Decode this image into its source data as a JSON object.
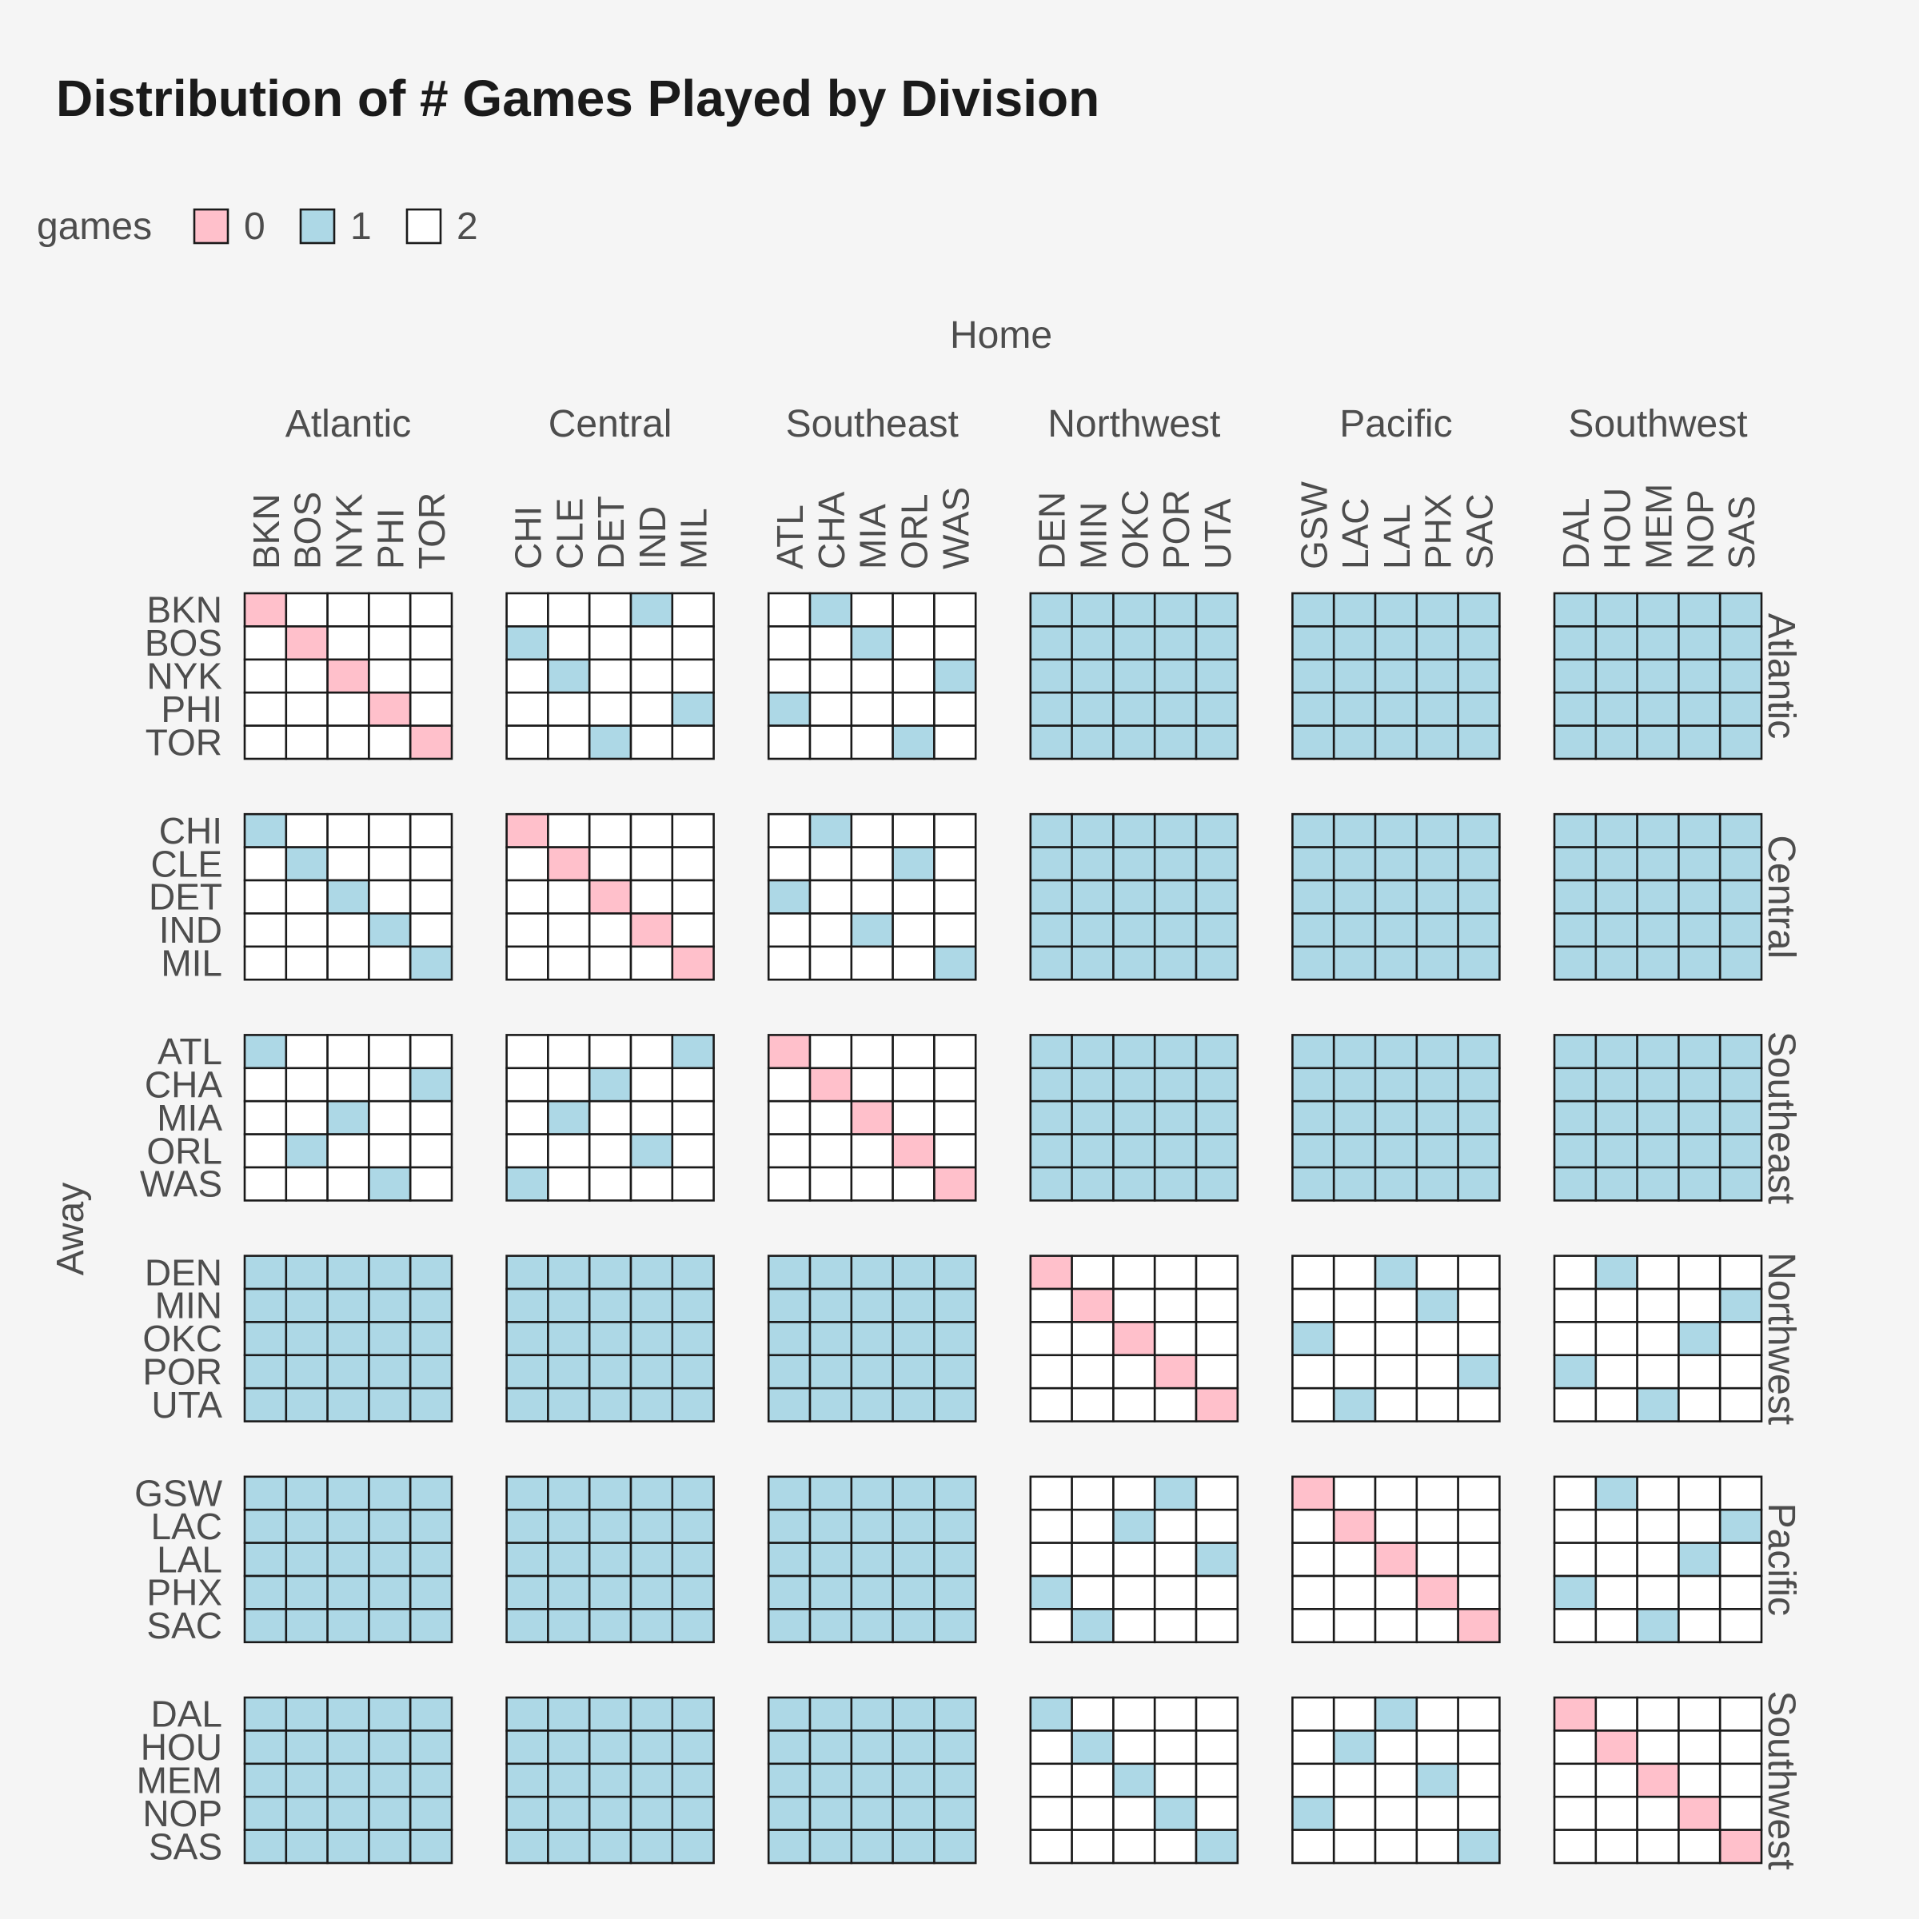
{
  "chart_data": {
    "type": "heatmap",
    "title": "Distribution of # Games Played by Division",
    "xlabel": "Home",
    "ylabel": "Away",
    "legend": {
      "title": "games",
      "placement": "top-left",
      "items": [
        {
          "label": "0",
          "color": "#ffc0cb"
        },
        {
          "label": "1",
          "color": "#add8e6"
        },
        {
          "label": "2",
          "color": "#ffffff"
        }
      ]
    },
    "divisions": [
      {
        "name": "Atlantic",
        "teams": [
          "BKN",
          "BOS",
          "NYK",
          "PHI",
          "TOR"
        ]
      },
      {
        "name": "Central",
        "teams": [
          "CHI",
          "CLE",
          "DET",
          "IND",
          "MIL"
        ]
      },
      {
        "name": "Southeast",
        "teams": [
          "ATL",
          "CHA",
          "MIA",
          "ORL",
          "WAS"
        ]
      },
      {
        "name": "Northwest",
        "teams": [
          "DEN",
          "MIN",
          "OKC",
          "POR",
          "UTA"
        ]
      },
      {
        "name": "Pacific",
        "teams": [
          "GSW",
          "LAC",
          "LAL",
          "PHX",
          "SAC"
        ]
      },
      {
        "name": "Southwest",
        "teams": [
          "DAL",
          "HOU",
          "MEM",
          "NOP",
          "SAS"
        ]
      }
    ],
    "row_strip_labels": [
      "Atlantic",
      "Central",
      "Southeast",
      "Northwest",
      "Pacific",
      "Southwest"
    ],
    "values": [
      [
        0,
        2,
        2,
        2,
        2,
        2,
        2,
        2,
        1,
        2,
        2,
        1,
        2,
        2,
        2,
        1,
        1,
        1,
        1,
        1,
        1,
        1,
        1,
        1,
        1,
        1,
        1,
        1,
        1,
        1
      ],
      [
        2,
        0,
        2,
        2,
        2,
        1,
        2,
        2,
        2,
        2,
        2,
        2,
        1,
        2,
        2,
        1,
        1,
        1,
        1,
        1,
        1,
        1,
        1,
        1,
        1,
        1,
        1,
        1,
        1,
        1
      ],
      [
        2,
        2,
        0,
        2,
        2,
        2,
        1,
        2,
        2,
        2,
        2,
        2,
        2,
        2,
        1,
        1,
        1,
        1,
        1,
        1,
        1,
        1,
        1,
        1,
        1,
        1,
        1,
        1,
        1,
        1
      ],
      [
        2,
        2,
        2,
        0,
        2,
        2,
        2,
        2,
        2,
        1,
        1,
        2,
        2,
        2,
        2,
        1,
        1,
        1,
        1,
        1,
        1,
        1,
        1,
        1,
        1,
        1,
        1,
        1,
        1,
        1
      ],
      [
        2,
        2,
        2,
        2,
        0,
        2,
        2,
        1,
        2,
        2,
        2,
        2,
        2,
        1,
        2,
        1,
        1,
        1,
        1,
        1,
        1,
        1,
        1,
        1,
        1,
        1,
        1,
        1,
        1,
        1
      ],
      [
        1,
        2,
        2,
        2,
        2,
        0,
        2,
        2,
        2,
        2,
        2,
        1,
        2,
        2,
        2,
        1,
        1,
        1,
        1,
        1,
        1,
        1,
        1,
        1,
        1,
        1,
        1,
        1,
        1,
        1
      ],
      [
        2,
        1,
        2,
        2,
        2,
        2,
        0,
        2,
        2,
        2,
        2,
        2,
        2,
        1,
        2,
        1,
        1,
        1,
        1,
        1,
        1,
        1,
        1,
        1,
        1,
        1,
        1,
        1,
        1,
        1
      ],
      [
        2,
        2,
        1,
        2,
        2,
        2,
        2,
        0,
        2,
        2,
        1,
        2,
        2,
        2,
        2,
        1,
        1,
        1,
        1,
        1,
        1,
        1,
        1,
        1,
        1,
        1,
        1,
        1,
        1,
        1
      ],
      [
        2,
        2,
        2,
        1,
        2,
        2,
        2,
        2,
        0,
        2,
        2,
        2,
        1,
        2,
        2,
        1,
        1,
        1,
        1,
        1,
        1,
        1,
        1,
        1,
        1,
        1,
        1,
        1,
        1,
        1
      ],
      [
        2,
        2,
        2,
        2,
        1,
        2,
        2,
        2,
        2,
        0,
        2,
        2,
        2,
        2,
        1,
        1,
        1,
        1,
        1,
        1,
        1,
        1,
        1,
        1,
        1,
        1,
        1,
        1,
        1,
        1
      ],
      [
        1,
        2,
        2,
        2,
        2,
        2,
        2,
        2,
        2,
        1,
        0,
        2,
        2,
        2,
        2,
        1,
        1,
        1,
        1,
        1,
        1,
        1,
        1,
        1,
        1,
        1,
        1,
        1,
        1,
        1
      ],
      [
        2,
        2,
        2,
        2,
        1,
        2,
        2,
        1,
        2,
        2,
        2,
        0,
        2,
        2,
        2,
        1,
        1,
        1,
        1,
        1,
        1,
        1,
        1,
        1,
        1,
        1,
        1,
        1,
        1,
        1
      ],
      [
        2,
        2,
        1,
        2,
        2,
        2,
        1,
        2,
        2,
        2,
        2,
        2,
        0,
        2,
        2,
        1,
        1,
        1,
        1,
        1,
        1,
        1,
        1,
        1,
        1,
        1,
        1,
        1,
        1,
        1
      ],
      [
        2,
        1,
        2,
        2,
        2,
        2,
        2,
        2,
        1,
        2,
        2,
        2,
        2,
        0,
        2,
        1,
        1,
        1,
        1,
        1,
        1,
        1,
        1,
        1,
        1,
        1,
        1,
        1,
        1,
        1
      ],
      [
        2,
        2,
        2,
        1,
        2,
        1,
        2,
        2,
        2,
        2,
        2,
        2,
        2,
        2,
        0,
        1,
        1,
        1,
        1,
        1,
        1,
        1,
        1,
        1,
        1,
        1,
        1,
        1,
        1,
        1
      ],
      [
        1,
        1,
        1,
        1,
        1,
        1,
        1,
        1,
        1,
        1,
        1,
        1,
        1,
        1,
        1,
        0,
        2,
        2,
        2,
        2,
        2,
        2,
        1,
        2,
        2,
        2,
        1,
        2,
        2,
        2
      ],
      [
        1,
        1,
        1,
        1,
        1,
        1,
        1,
        1,
        1,
        1,
        1,
        1,
        1,
        1,
        1,
        2,
        0,
        2,
        2,
        2,
        2,
        2,
        2,
        1,
        2,
        2,
        2,
        2,
        2,
        1
      ],
      [
        1,
        1,
        1,
        1,
        1,
        1,
        1,
        1,
        1,
        1,
        1,
        1,
        1,
        1,
        1,
        2,
        2,
        0,
        2,
        2,
        1,
        2,
        2,
        2,
        2,
        2,
        2,
        2,
        1,
        2
      ],
      [
        1,
        1,
        1,
        1,
        1,
        1,
        1,
        1,
        1,
        1,
        1,
        1,
        1,
        1,
        1,
        2,
        2,
        2,
        0,
        2,
        2,
        2,
        2,
        2,
        1,
        1,
        2,
        2,
        2,
        2
      ],
      [
        1,
        1,
        1,
        1,
        1,
        1,
        1,
        1,
        1,
        1,
        1,
        1,
        1,
        1,
        1,
        2,
        2,
        2,
        2,
        0,
        2,
        1,
        2,
        2,
        2,
        2,
        2,
        1,
        2,
        2
      ],
      [
        1,
        1,
        1,
        1,
        1,
        1,
        1,
        1,
        1,
        1,
        1,
        1,
        1,
        1,
        1,
        2,
        2,
        2,
        1,
        2,
        0,
        2,
        2,
        2,
        2,
        2,
        1,
        2,
        2,
        2
      ],
      [
        1,
        1,
        1,
        1,
        1,
        1,
        1,
        1,
        1,
        1,
        1,
        1,
        1,
        1,
        1,
        2,
        2,
        1,
        2,
        2,
        2,
        0,
        2,
        2,
        2,
        2,
        2,
        2,
        2,
        1
      ],
      [
        1,
        1,
        1,
        1,
        1,
        1,
        1,
        1,
        1,
        1,
        1,
        1,
        1,
        1,
        1,
        2,
        2,
        2,
        2,
        1,
        2,
        2,
        0,
        2,
        2,
        2,
        2,
        2,
        1,
        2
      ],
      [
        1,
        1,
        1,
        1,
        1,
        1,
        1,
        1,
        1,
        1,
        1,
        1,
        1,
        1,
        1,
        1,
        2,
        2,
        2,
        2,
        2,
        2,
        2,
        0,
        2,
        1,
        2,
        2,
        2,
        2
      ],
      [
        1,
        1,
        1,
        1,
        1,
        1,
        1,
        1,
        1,
        1,
        1,
        1,
        1,
        1,
        1,
        2,
        1,
        2,
        2,
        2,
        2,
        2,
        2,
        2,
        0,
        2,
        2,
        1,
        2,
        2
      ],
      [
        1,
        1,
        1,
        1,
        1,
        1,
        1,
        1,
        1,
        1,
        1,
        1,
        1,
        1,
        1,
        1,
        2,
        2,
        2,
        2,
        2,
        2,
        1,
        2,
        2,
        0,
        2,
        2,
        2,
        2
      ],
      [
        1,
        1,
        1,
        1,
        1,
        1,
        1,
        1,
        1,
        1,
        1,
        1,
        1,
        1,
        1,
        2,
        1,
        2,
        2,
        2,
        2,
        1,
        2,
        2,
        2,
        2,
        0,
        2,
        2,
        2
      ],
      [
        1,
        1,
        1,
        1,
        1,
        1,
        1,
        1,
        1,
        1,
        1,
        1,
        1,
        1,
        1,
        2,
        2,
        1,
        2,
        2,
        2,
        2,
        2,
        1,
        2,
        2,
        2,
        0,
        2,
        2
      ],
      [
        1,
        1,
        1,
        1,
        1,
        1,
        1,
        1,
        1,
        1,
        1,
        1,
        1,
        1,
        1,
        2,
        2,
        2,
        1,
        2,
        1,
        2,
        2,
        2,
        2,
        2,
        2,
        2,
        0,
        2
      ],
      [
        1,
        1,
        1,
        1,
        1,
        1,
        1,
        1,
        1,
        1,
        1,
        1,
        1,
        1,
        1,
        2,
        2,
        2,
        2,
        1,
        2,
        2,
        2,
        2,
        1,
        2,
        2,
        2,
        2,
        0
      ]
    ]
  }
}
